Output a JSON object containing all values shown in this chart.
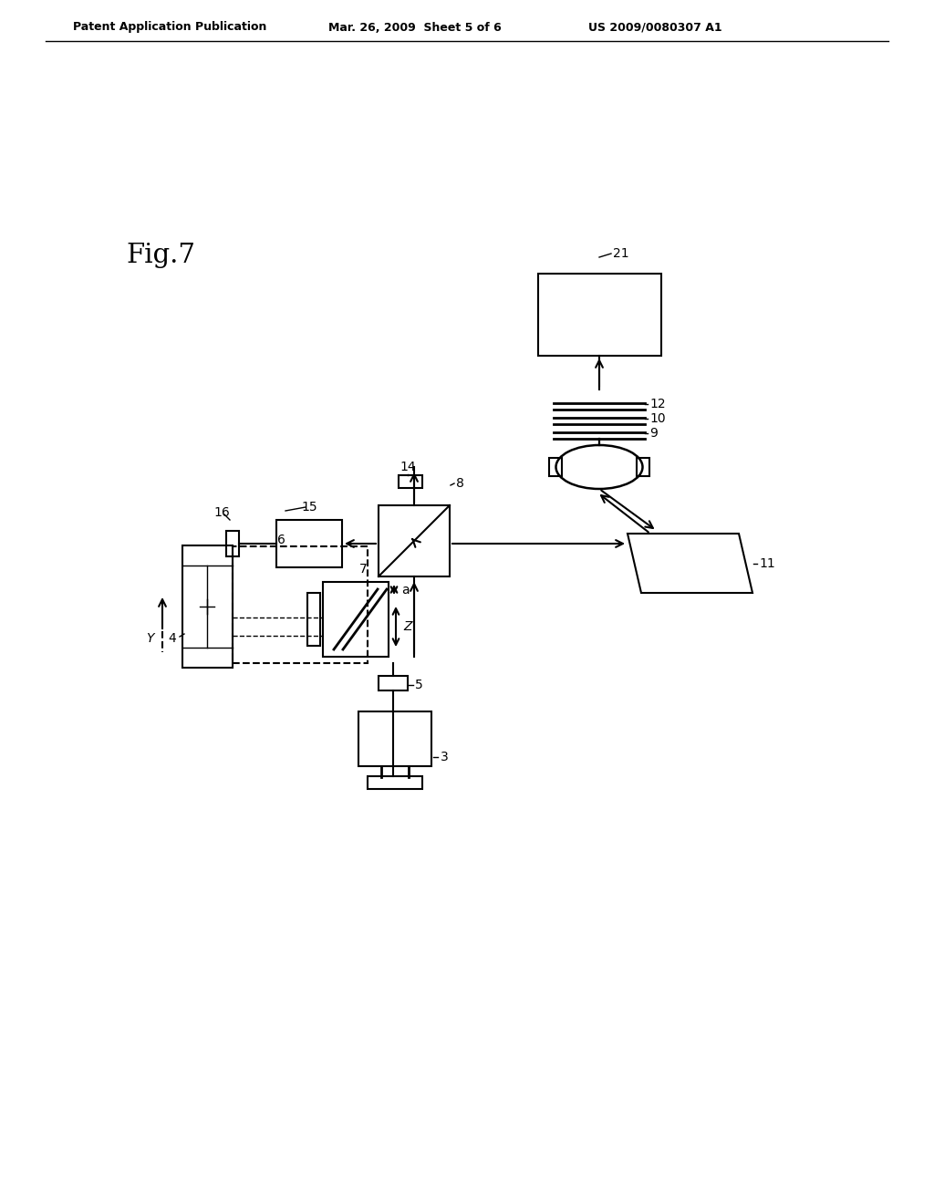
{
  "header_left": "Patent Application Publication",
  "header_mid": "Mar. 26, 2009  Sheet 5 of 6",
  "header_right": "US 2009/0080307 A1",
  "bg_color": "#ffffff",
  "line_color": "#000000"
}
